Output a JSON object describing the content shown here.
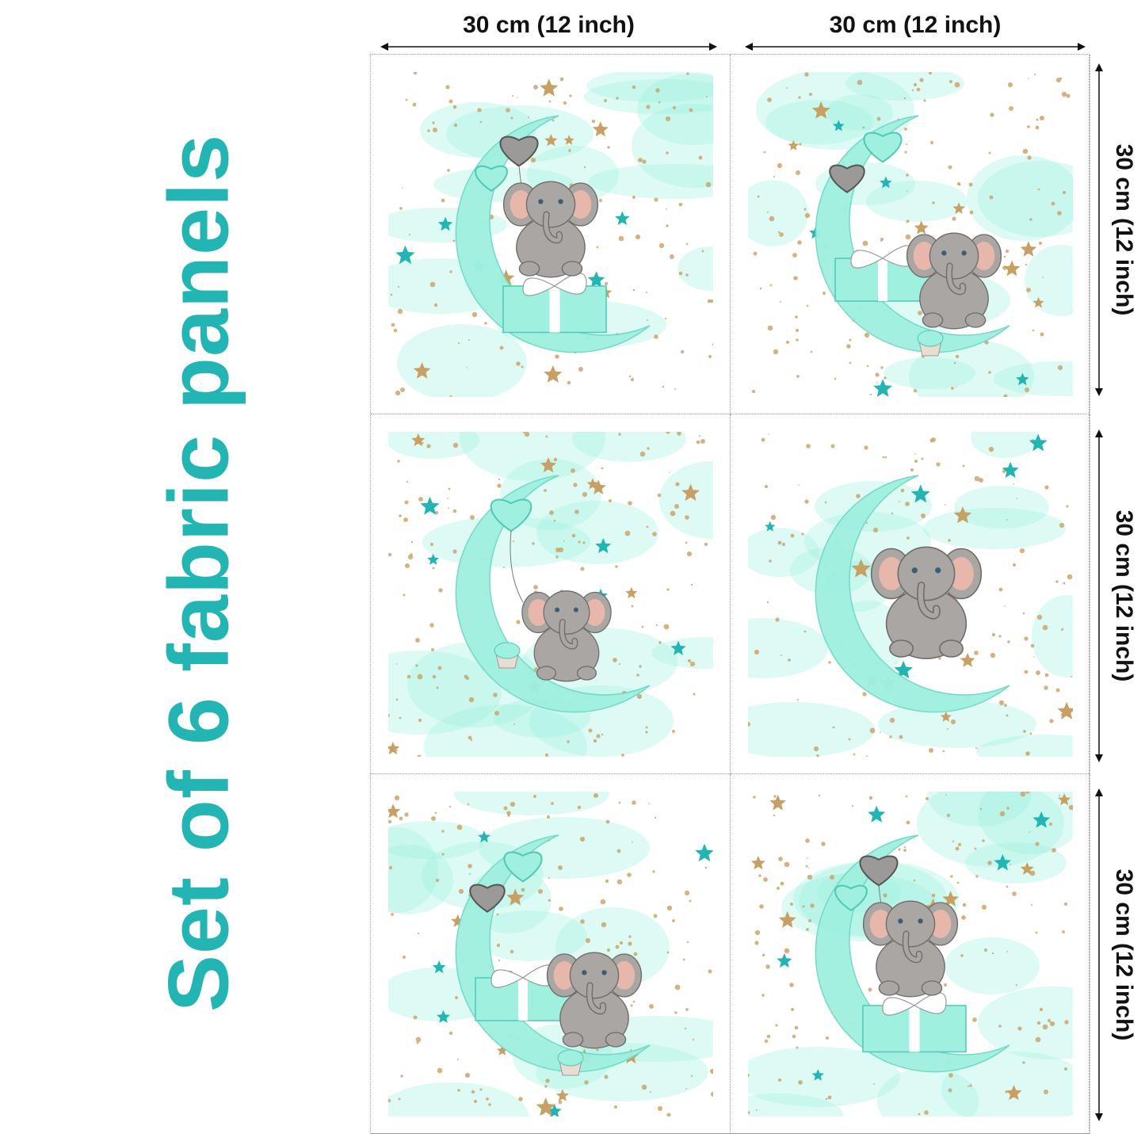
{
  "title": "Set of 6 fabric panels",
  "dimensions": {
    "width_label": "30 cm (12 inch)",
    "height_label": "30 cm (12 inch)"
  },
  "colors": {
    "accent": "#23b5b3",
    "mint": "#9ff0df",
    "gold": "#c9a063",
    "elephant": "#a9a6a4"
  },
  "panels": [
    {
      "scene": "elephant-on-gift-with-balloons"
    },
    {
      "scene": "elephant-with-gift-and-cupcake"
    },
    {
      "scene": "elephant-holding-balloon-and-cupcake"
    },
    {
      "scene": "elephant-on-moon"
    },
    {
      "scene": "elephant-with-gift-and-cupcake"
    },
    {
      "scene": "elephant-on-gift-with-balloons"
    }
  ]
}
